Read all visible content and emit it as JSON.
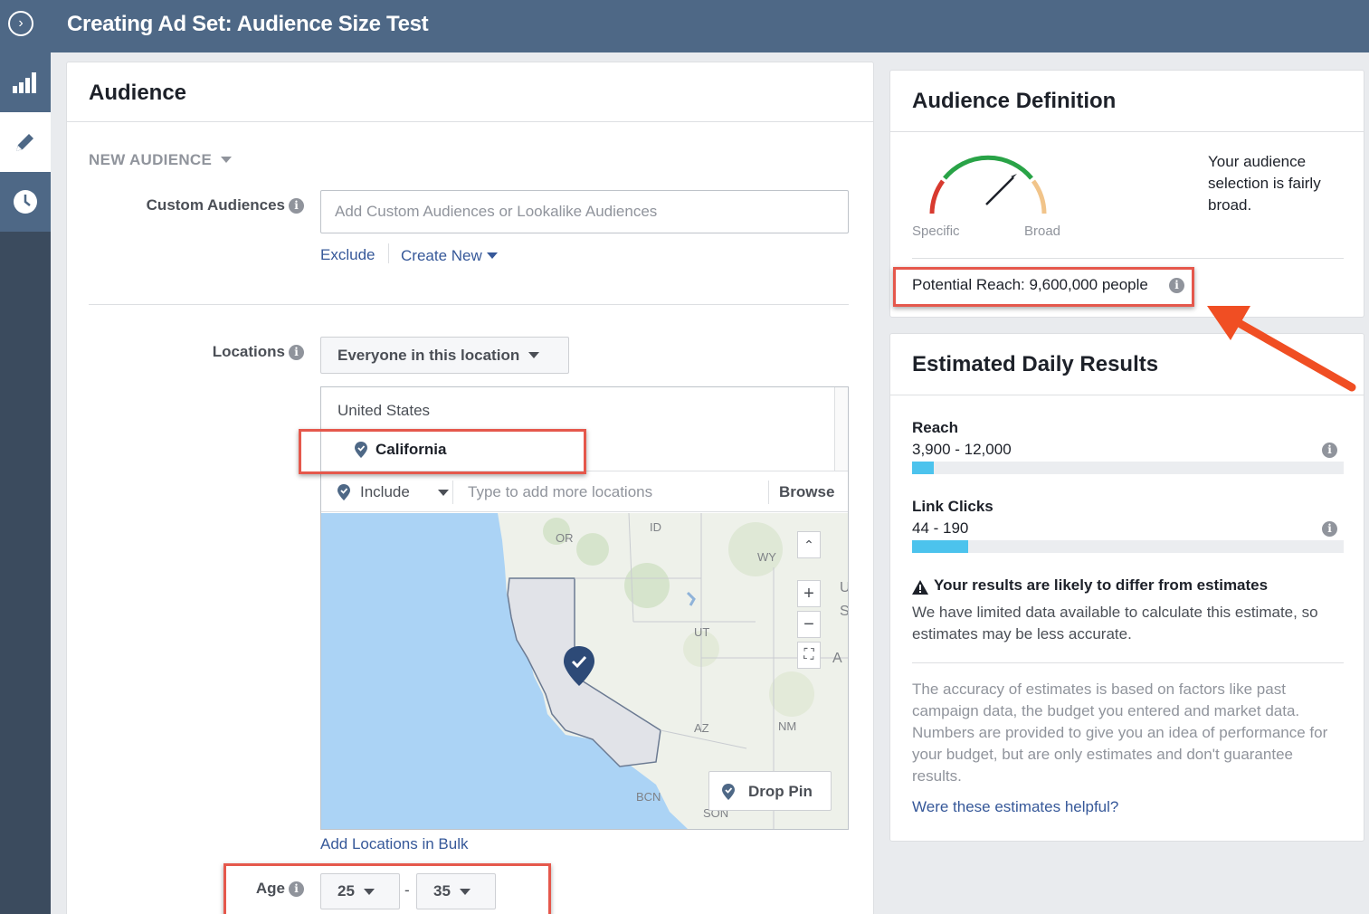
{
  "header": {
    "title": "Creating Ad Set: Audience Size Test"
  },
  "audience": {
    "title": "Audience",
    "new_audience": "NEW AUDIENCE",
    "custom_audiences_label": "Custom Audiences",
    "custom_audiences_placeholder": "Add Custom Audiences or Lookalike Audiences",
    "exclude": "Exclude",
    "create_new": "Create New",
    "locations_label": "Locations",
    "location_type": "Everyone in this location",
    "country": "United States",
    "selected_location": "California",
    "include": "Include",
    "location_placeholder": "Type to add more locations",
    "browse": "Browse",
    "drop_pin": "Drop Pin",
    "add_bulk": "Add Locations in Bulk",
    "age_label": "Age",
    "age_min": "25",
    "age_sep": "-",
    "age_max": "35",
    "map_labels": {
      "id": "ID",
      "or": "OR",
      "wy": "WY",
      "ut": "UT",
      "az": "AZ",
      "nm": "NM",
      "bcn": "BCN",
      "son": "SON",
      "u": "U",
      "s": "S",
      "a": "A"
    }
  },
  "definition": {
    "title": "Audience Definition",
    "specific": "Specific",
    "broad": "Broad",
    "summary": "Your audience selection is fairly broad.",
    "potential_reach": "Potential Reach: 9,600,000 people"
  },
  "results": {
    "title": "Estimated Daily Results",
    "reach_label": "Reach",
    "reach_value": "3,900 - 12,000",
    "reach_fill": 0.05,
    "clicks_label": "Link Clicks",
    "clicks_value": "44 - 190",
    "clicks_fill": 0.13,
    "warning_title": "Your results are likely to differ from estimates",
    "warning_text": "We have limited data available to calculate this estimate, so estimates may be less accurate.",
    "accuracy_text": "The accuracy of estimates is based on factors like past campaign data, the budget you entered and market data. Numbers are provided to give you an idea of performance for your budget, but are only estimates and don't guarantee results.",
    "helpful_link": "Were these estimates helpful?"
  },
  "colors": {
    "accent": "#365899",
    "annotation": "#e5584c",
    "arrow": "#f04e23",
    "bar_fill": "#4cc3ed",
    "topbar": "#4e6886"
  }
}
